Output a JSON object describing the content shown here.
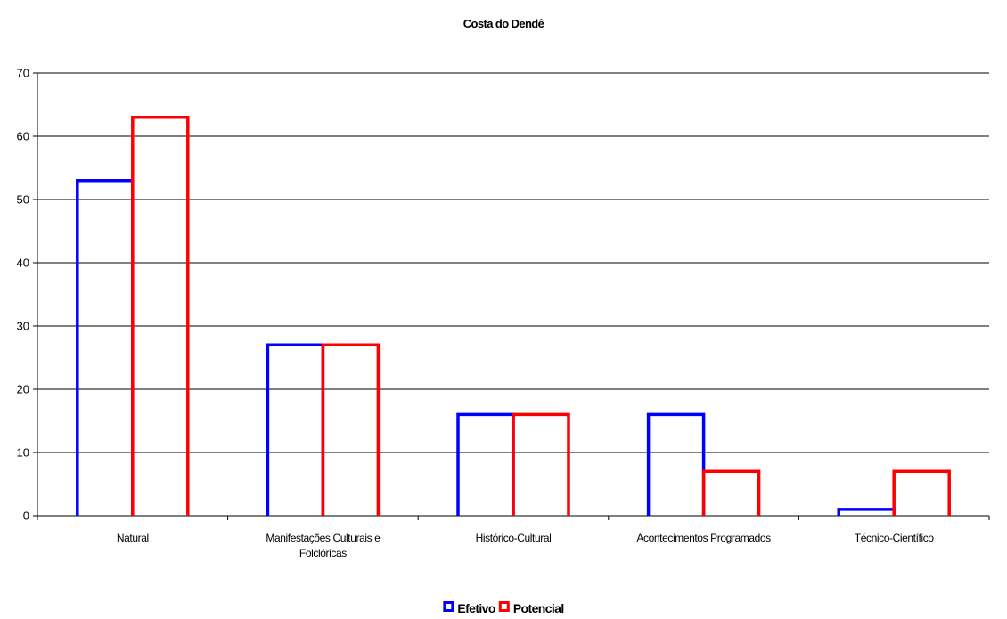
{
  "chart_data": {
    "type": "bar",
    "title": "Costa do Dendê",
    "categories": [
      [
        "Natural"
      ],
      [
        "Manifestações Culturais e",
        "Folclóricas"
      ],
      [
        "Histórico-Cultural"
      ],
      [
        "Acontecimentos Programados"
      ],
      [
        "Técnico-Científico"
      ]
    ],
    "series": [
      {
        "name": "Efetivo",
        "color": "#0000ff",
        "values": [
          53,
          27,
          16,
          16,
          1
        ]
      },
      {
        "name": "Potencial",
        "color": "#ff0000",
        "values": [
          63,
          27,
          16,
          7,
          7
        ]
      }
    ],
    "ylim": [
      0,
      70
    ],
    "yticks": [
      0,
      10,
      20,
      30,
      40,
      50,
      60,
      70
    ],
    "grid": true,
    "legend_position": "bottom-center",
    "bar_style": "outline",
    "gridline_color": "#000000"
  }
}
